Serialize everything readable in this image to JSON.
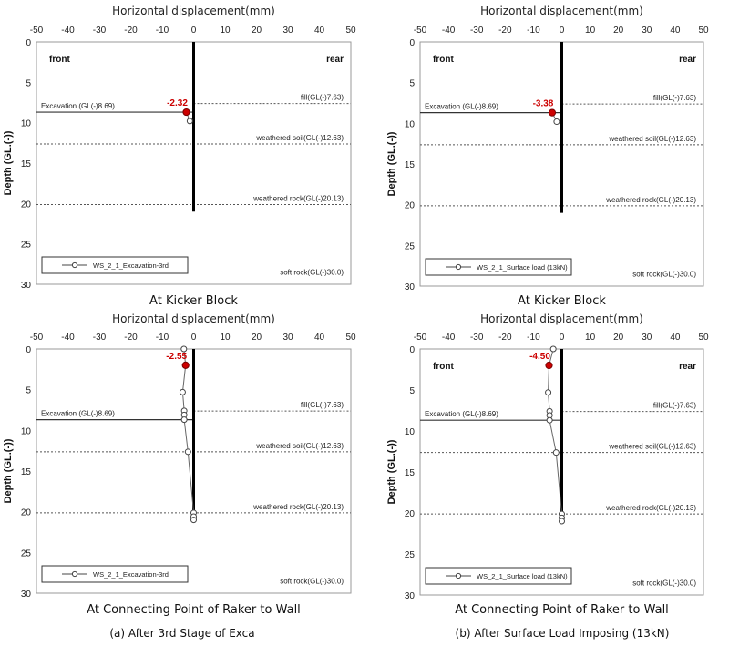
{
  "colors": {
    "accent_point": "#cc0000",
    "series_line": "#666666",
    "wall": "#000000",
    "dotted": "#555555",
    "frame": "#999999"
  },
  "subfigure_captions": [
    "(a) After 3rd Stage of Exca",
    "(b) After Surface Load Imposing (13kN)"
  ],
  "chart_data": [
    {
      "type": "line",
      "title": "At Kicker Block",
      "xlabel": "Horizontal displacement(mm)",
      "ylabel": "Depth (GL.(-))",
      "xlim": [
        -50,
        50
      ],
      "ylim": [
        0,
        30
      ],
      "y_inverted": true,
      "xticks": [
        "-50",
        "-40",
        "-30",
        "-20",
        "-10",
        "0",
        "10",
        "20",
        "30",
        "40",
        "50"
      ],
      "yticks": [
        "0",
        "5",
        "10",
        "15",
        "20",
        "25",
        "30"
      ],
      "side_labels": {
        "left": "front",
        "right": "rear"
      },
      "wall": {
        "x": 0,
        "y_top": 0,
        "y_bottom": 21
      },
      "layers": [
        {
          "label": "fill(GL(-)7.63)",
          "depth": 7.63,
          "left_end": 0
        },
        {
          "label": "weathered soil(GL(-)12.63)",
          "depth": 12.63,
          "left_end": -50
        },
        {
          "label": "weathered rock(GL(-)20.13)",
          "depth": 20.13,
          "left_end": -50
        },
        {
          "label": "soft rock(GL(-)30.0)",
          "depth": 30.0,
          "left_end": null
        }
      ],
      "excavation": {
        "label": "Excavation (GL(-)8.69)",
        "depth": 8.69
      },
      "series": [
        {
          "name": "WS_2_1_Excavation-3rd",
          "points": [
            [
              -2.32,
              8.69
            ],
            [
              -1.2,
              9.8
            ]
          ]
        }
      ],
      "highlight": {
        "x": -2.32,
        "y": 8.69,
        "label": "-2.32"
      }
    },
    {
      "type": "line",
      "title": "At Kicker Block",
      "xlabel": "Horizontal displacement(mm)",
      "ylabel": "Depth (GL.(-))",
      "xlim": [
        -50,
        50
      ],
      "ylim": [
        0,
        30
      ],
      "y_inverted": true,
      "xticks": [
        "-50",
        "-40",
        "-30",
        "-20",
        "-10",
        "0",
        "10",
        "20",
        "30",
        "40",
        "50"
      ],
      "yticks": [
        "0",
        "5",
        "10",
        "15",
        "20",
        "25",
        "30"
      ],
      "side_labels": {
        "left": "front",
        "right": "rear"
      },
      "wall": {
        "x": 0,
        "y_top": 0,
        "y_bottom": 21
      },
      "layers": [
        {
          "label": "fill(GL(-)7.63)",
          "depth": 7.63,
          "left_end": 0
        },
        {
          "label": "weathered soil(GL(-)12.63)",
          "depth": 12.63,
          "left_end": -50
        },
        {
          "label": "weathered rock(GL(-)20.13)",
          "depth": 20.13,
          "left_end": -50
        },
        {
          "label": "soft rock(GL(-)30.0)",
          "depth": 30.0,
          "left_end": null
        }
      ],
      "excavation": {
        "label": "Excavation (GL(-)8.69)",
        "depth": 8.69
      },
      "series": [
        {
          "name": "WS_2_1_Surface load (13kN)",
          "points": [
            [
              -3.38,
              8.69
            ],
            [
              -1.8,
              9.8
            ]
          ]
        }
      ],
      "highlight": {
        "x": -3.38,
        "y": 8.69,
        "label": "-3.38"
      }
    },
    {
      "type": "line",
      "title": "At Connecting Point of Raker to Wall",
      "xlabel": "Horizontal displacement(mm)",
      "ylabel": "Depth (GL.(-))",
      "xlim": [
        -50,
        50
      ],
      "ylim": [
        0,
        30
      ],
      "y_inverted": true,
      "xticks": [
        "-50",
        "-40",
        "-30",
        "-20",
        "-10",
        "0",
        "10",
        "20",
        "30",
        "40",
        "50"
      ],
      "yticks": [
        "0",
        "5",
        "10",
        "15",
        "20",
        "25",
        "30"
      ],
      "side_labels": {
        "left": "",
        "right": ""
      },
      "wall": {
        "x": 0,
        "y_top": 0,
        "y_bottom": 21
      },
      "layers": [
        {
          "label": "fill(GL(-)7.63)",
          "depth": 7.63,
          "left_end": 0
        },
        {
          "label": "weathered soil(GL(-)12.63)",
          "depth": 12.63,
          "left_end": -50
        },
        {
          "label": "weathered rock(GL(-)20.13)",
          "depth": 20.13,
          "left_end": -50
        },
        {
          "label": "soft rock(GL(-)30.0)",
          "depth": 30.0,
          "left_end": null
        }
      ],
      "excavation": {
        "label": "Excavation (GL(-)8.69)",
        "depth": 8.69
      },
      "series": [
        {
          "name": "WS_2_1_Excavation-3rd",
          "points": [
            [
              -3.1,
              0
            ],
            [
              -2.55,
              2
            ],
            [
              -3.5,
              5.3
            ],
            [
              -3.0,
              7.6
            ],
            [
              -3.0,
              8.1
            ],
            [
              -3.0,
              8.69
            ],
            [
              -1.8,
              12.63
            ],
            [
              0,
              20.13
            ],
            [
              0,
              20.6
            ],
            [
              0,
              21
            ]
          ]
        }
      ],
      "highlight": {
        "x": -2.55,
        "y": 2,
        "label": "-2.55"
      }
    },
    {
      "type": "line",
      "title": "At Connecting Point of Raker to Wall",
      "xlabel": "Horizontal displacement(mm)",
      "ylabel": "Depth (GL.(-))",
      "xlim": [
        -50,
        50
      ],
      "ylim": [
        0,
        30
      ],
      "y_inverted": true,
      "xticks": [
        "-50",
        "-40",
        "-30",
        "-20",
        "-10",
        "0",
        "10",
        "20",
        "30",
        "40",
        "50"
      ],
      "yticks": [
        "0",
        "5",
        "10",
        "15",
        "20",
        "25",
        "30"
      ],
      "side_labels": {
        "left": "front",
        "right": "rear"
      },
      "wall": {
        "x": 0,
        "y_top": 0,
        "y_bottom": 21
      },
      "layers": [
        {
          "label": "fill(GL(-)7.63)",
          "depth": 7.63,
          "left_end": 0
        },
        {
          "label": "weathered soil(GL(-)12.63)",
          "depth": 12.63,
          "left_end": -50
        },
        {
          "label": "weathered rock(GL(-)20.13)",
          "depth": 20.13,
          "left_end": -50
        },
        {
          "label": "soft rock(GL(-)30.0)",
          "depth": 30.0,
          "left_end": null
        }
      ],
      "excavation": {
        "label": "Excavation (GL(-)8.69)",
        "depth": 8.69
      },
      "series": [
        {
          "name": "WS_2_1_Surface load (13kN)",
          "points": [
            [
              -3.0,
              0
            ],
            [
              -4.5,
              2
            ],
            [
              -4.8,
              5.3
            ],
            [
              -4.3,
              7.6
            ],
            [
              -4.3,
              8.1
            ],
            [
              -4.3,
              8.69
            ],
            [
              -2.0,
              12.63
            ],
            [
              0,
              20.13
            ],
            [
              0,
              20.6
            ],
            [
              0,
              21
            ]
          ]
        }
      ],
      "highlight": {
        "x": -4.5,
        "y": 2,
        "label": "-4.50"
      }
    }
  ]
}
